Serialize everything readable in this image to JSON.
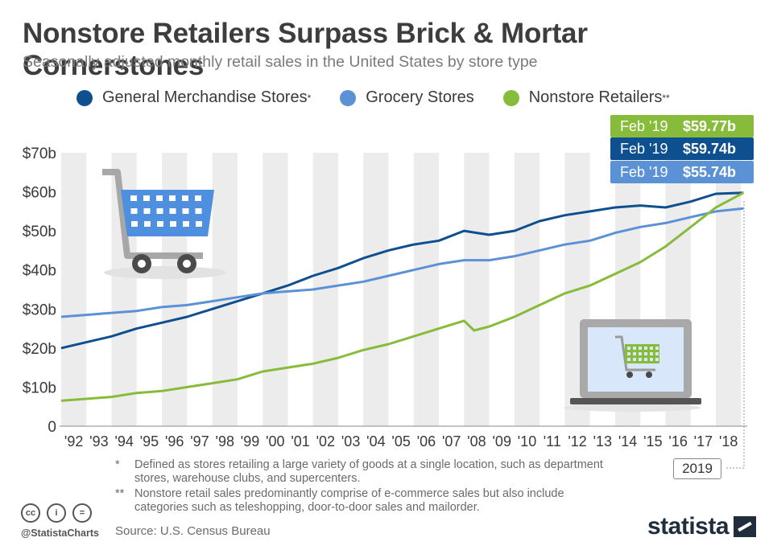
{
  "header": {
    "title": "Nonstore Retailers Surpass Brick & Mortar Cornerstones",
    "subtitle": "Seasonally adjusted monthly retail sales in the United States by store type"
  },
  "legend": [
    {
      "label": "General Merchandise Stores",
      "mark": "*",
      "color": "#0e4f8f"
    },
    {
      "label": "Grocery Stores",
      "mark": "",
      "color": "#5b92d6"
    },
    {
      "label": "Nonstore Retailers",
      "mark": "**",
      "color": "#86bc3a"
    }
  ],
  "callouts": [
    {
      "date": "Feb '19",
      "value": "$59.77b",
      "color": "#86bc3a"
    },
    {
      "date": "Feb '19",
      "value": "$59.74b",
      "color": "#0e4f8f"
    },
    {
      "date": "Feb '19",
      "value": "$55.74b",
      "color": "#5b92d6"
    }
  ],
  "year_box": "2019",
  "notes": [
    {
      "mark": "*",
      "text": "Defined as stores retailing a large variety of goods at a single location, such as department stores, warehouse clubs, and supercenters."
    },
    {
      "mark": "**",
      "text": "Nonstore retail sales predominantly comprise of e-commerce sales but also include categories such as teleshopping, door-to-door sales and mailorder."
    }
  ],
  "footer": {
    "handle": "@StatistaCharts",
    "source": "Source: U.S. Census Bureau",
    "brand": "statista",
    "cc_icons": [
      "cc",
      "i",
      "="
    ]
  },
  "chart_data": {
    "type": "line",
    "title": "Nonstore Retailers Surpass Brick & Mortar Cornerstones",
    "xlabel": "",
    "ylabel": "",
    "ylim": [
      0,
      70
    ],
    "y_ticks": [
      "0",
      "$10b",
      "$20b",
      "$30b",
      "$40b",
      "$50b",
      "$60b",
      "$70b"
    ],
    "y_tick_values": [
      0,
      10,
      20,
      30,
      40,
      50,
      60,
      70
    ],
    "x_ticks": [
      "'92",
      "'93",
      "'94",
      "'95",
      "'96",
      "'97",
      "'98",
      "'99",
      "'00",
      "'01",
      "'02",
      "'03",
      "'04",
      "'05",
      "'06",
      "'07",
      "'08",
      "'09",
      "'10",
      "'11",
      "'12",
      "'13",
      "'14",
      "'15",
      "'16",
      "'17",
      "'18"
    ],
    "x_range": [
      1992,
      2019.15
    ],
    "alternating_year_bands": true,
    "grid": false,
    "legend": "top",
    "series": [
      {
        "name": "General Merchandise Stores",
        "color": "#0e4f8f",
        "x": [
          1992,
          1993,
          1994,
          1995,
          1996,
          1997,
          1998,
          1999,
          2000,
          2001,
          2002,
          2003,
          2004,
          2005,
          2006,
          2007,
          2008,
          2008.5,
          2009,
          2010,
          2011,
          2012,
          2013,
          2014,
          2015,
          2016,
          2017,
          2018,
          2019.1
        ],
        "y": [
          20,
          21.5,
          23,
          25,
          26.5,
          28,
          30,
          32,
          34,
          36,
          38.5,
          40.5,
          43,
          45,
          46.5,
          47.5,
          50,
          49.5,
          49,
          50,
          52.5,
          54,
          55,
          56,
          56.5,
          56,
          57.5,
          59.5,
          59.74
        ]
      },
      {
        "name": "Grocery Stores",
        "color": "#5b92d6",
        "x": [
          1992,
          1993,
          1994,
          1995,
          1996,
          1997,
          1998,
          1999,
          2000,
          2001,
          2002,
          2003,
          2004,
          2005,
          2006,
          2007,
          2008,
          2009,
          2010,
          2011,
          2012,
          2013,
          2014,
          2015,
          2016,
          2017,
          2018,
          2019.1
        ],
        "y": [
          28,
          28.5,
          29,
          29.5,
          30.5,
          31,
          32,
          33,
          34,
          34.5,
          35,
          36,
          37,
          38.5,
          40,
          41.5,
          42.5,
          42.5,
          43.5,
          45,
          46.5,
          47.5,
          49.5,
          51,
          52,
          53.5,
          55,
          55.74
        ]
      },
      {
        "name": "Nonstore Retailers",
        "color": "#86bc3a",
        "x": [
          1992,
          1993,
          1994,
          1995,
          1996,
          1997,
          1998,
          1999,
          2000,
          2001,
          2002,
          2003,
          2004,
          2005,
          2006,
          2007,
          2008,
          2008.4,
          2009,
          2010,
          2011,
          2012,
          2013,
          2014,
          2015,
          2016,
          2017,
          2018,
          2019.1
        ],
        "y": [
          6.5,
          7,
          7.5,
          8.5,
          9,
          10,
          11,
          12,
          14,
          15,
          16,
          17.5,
          19.5,
          21,
          23,
          25,
          27,
          24.5,
          25.5,
          28,
          31,
          34,
          36,
          39,
          42,
          46,
          51,
          56,
          59.77
        ]
      }
    ]
  }
}
